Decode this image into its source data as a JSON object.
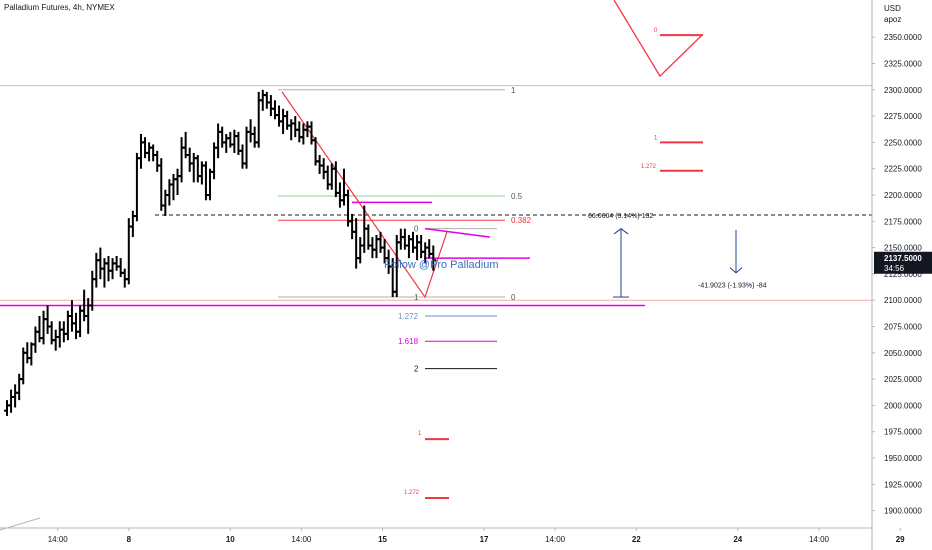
{
  "title": "Palladium Futures, 4h, NYMEX",
  "axis_header": {
    "line1": "USD",
    "line2": "apoz"
  },
  "current_price": {
    "value": "2137.5000",
    "countdown": "34:56"
  },
  "watermark": "Follow @Pro Palladium",
  "measure_up_label": "66.0604 (3.14%) 132",
  "measure_down_label": "-41.9023 (-1.93%) -84",
  "colors": {
    "bar": "#000000",
    "fib_red": "#f23645",
    "magenta": "#e100e1",
    "level_line": "#f7a8a8",
    "blue": "#2a3f8f",
    "fib_green": "#8fd18f",
    "fib_grey": "#b0b0b0",
    "fib_blue": "#6b8fd1",
    "dashed": "#131722"
  },
  "chart_data": {
    "type": "ohlc",
    "title": "Palladium Futures, 4h, NYMEX",
    "ylabel": "USD",
    "ylim": [
      1885,
      2385
    ],
    "y_ticks": [
      1900,
      1925,
      1950,
      1975,
      2000,
      2025,
      2050,
      2075,
      2100,
      2125,
      2150,
      2175,
      2200,
      2225,
      2250,
      2275,
      2300,
      2325,
      2350
    ],
    "y_tick_labels": [
      "1900.0000",
      "1925.0000",
      "1950.0000",
      "1975.0000",
      "2000.0000",
      "2025.0000",
      "2050.0000",
      "2075.0000",
      "2100.0000",
      "2125.0000",
      "2150.0000",
      "2175.0000",
      "2200.0000",
      "2225.0000",
      "2250.0000",
      "2275.0000",
      "2300.0000",
      "2325.0000",
      "2350.0000"
    ],
    "x_ticks": [
      {
        "label": "14:00",
        "pos": 2.5
      },
      {
        "label": "8",
        "pos": 6.0
      },
      {
        "label": "10",
        "pos": 11.0
      },
      {
        "label": "14:00",
        "pos": 14.5
      },
      {
        "label": "15",
        "pos": 18.5
      },
      {
        "label": "17",
        "pos": 23.5
      },
      {
        "label": "14:00",
        "pos": 27.0
      },
      {
        "label": "22",
        "pos": 31.0
      },
      {
        "label": "24",
        "pos": 36.0
      },
      {
        "label": "14:00",
        "pos": 40.0
      },
      {
        "label": "29",
        "pos": 44.0
      }
    ],
    "x_range": [
      0,
      47
    ],
    "ohlc": [
      [
        0.0,
        1995,
        2005,
        1990,
        2000
      ],
      [
        0.2,
        2000,
        2015,
        1993,
        2008
      ],
      [
        0.4,
        2008,
        2020,
        1998,
        2012
      ],
      [
        0.6,
        2012,
        2030,
        2005,
        2025
      ],
      [
        0.8,
        2025,
        2055,
        2020,
        2050
      ],
      [
        1.0,
        2050,
        2060,
        2040,
        2045
      ],
      [
        1.2,
        2045,
        2060,
        2038,
        2058
      ],
      [
        1.4,
        2058,
        2075,
        2050,
        2070
      ],
      [
        1.6,
        2070,
        2085,
        2060,
        2064
      ],
      [
        1.8,
        2064,
        2090,
        2058,
        2082
      ],
      [
        2.0,
        2082,
        2095,
        2068,
        2075
      ],
      [
        2.2,
        2075,
        2080,
        2058,
        2062
      ],
      [
        2.4,
        2062,
        2072,
        2052,
        2065
      ],
      [
        2.6,
        2065,
        2080,
        2055,
        2072
      ],
      [
        2.8,
        2072,
        2080,
        2060,
        2068
      ],
      [
        3.0,
        2068,
        2090,
        2062,
        2085
      ],
      [
        3.2,
        2085,
        2100,
        2070,
        2078
      ],
      [
        3.4,
        2078,
        2088,
        2063,
        2070
      ],
      [
        3.6,
        2070,
        2095,
        2065,
        2090
      ],
      [
        3.8,
        2090,
        2110,
        2080,
        2085
      ],
      [
        4.0,
        2085,
        2102,
        2068,
        2095
      ],
      [
        4.2,
        2095,
        2128,
        2090,
        2120
      ],
      [
        4.4,
        2120,
        2145,
        2112,
        2138
      ],
      [
        4.6,
        2138,
        2150,
        2120,
        2130
      ],
      [
        4.8,
        2130,
        2140,
        2112,
        2135
      ],
      [
        5.0,
        2135,
        2142,
        2118,
        2128
      ],
      [
        5.2,
        2128,
        2140,
        2120,
        2135
      ],
      [
        5.4,
        2135,
        2142,
        2128,
        2132
      ],
      [
        5.6,
        2132,
        2140,
        2122,
        2126
      ],
      [
        5.8,
        2126,
        2130,
        2112,
        2120
      ],
      [
        6.0,
        2120,
        2178,
        2115,
        2170
      ],
      [
        6.2,
        2170,
        2185,
        2160,
        2180
      ],
      [
        6.4,
        2180,
        2240,
        2175,
        2235
      ],
      [
        6.6,
        2235,
        2258,
        2225,
        2250
      ],
      [
        6.8,
        2250,
        2255,
        2235,
        2240
      ],
      [
        7.0,
        2240,
        2250,
        2232,
        2245
      ],
      [
        7.2,
        2245,
        2248,
        2232,
        2238
      ],
      [
        7.4,
        2238,
        2242,
        2222,
        2228
      ],
      [
        7.6,
        2228,
        2235,
        2185,
        2190
      ],
      [
        7.8,
        2190,
        2205,
        2180,
        2200
      ],
      [
        8.0,
        2200,
        2215,
        2190,
        2210
      ],
      [
        8.2,
        2210,
        2220,
        2195,
        2215
      ],
      [
        8.4,
        2215,
        2225,
        2200,
        2218
      ],
      [
        8.6,
        2218,
        2255,
        2212,
        2245
      ],
      [
        8.8,
        2245,
        2260,
        2235,
        2238
      ],
      [
        9.0,
        2238,
        2245,
        2222,
        2230
      ],
      [
        9.2,
        2230,
        2240,
        2212,
        2235
      ],
      [
        9.4,
        2235,
        2238,
        2212,
        2218
      ],
      [
        9.6,
        2218,
        2232,
        2210,
        2228
      ],
      [
        9.8,
        2228,
        2232,
        2195,
        2200
      ],
      [
        10.0,
        2200,
        2225,
        2195,
        2222
      ],
      [
        10.2,
        2222,
        2250,
        2215,
        2245
      ],
      [
        10.4,
        2245,
        2268,
        2235,
        2260
      ],
      [
        10.6,
        2260,
        2265,
        2245,
        2250
      ],
      [
        10.8,
        2250,
        2258,
        2240,
        2254
      ],
      [
        11.0,
        2254,
        2260,
        2245,
        2248
      ],
      [
        11.2,
        2248,
        2262,
        2240,
        2256
      ],
      [
        11.4,
        2256,
        2260,
        2238,
        2242
      ],
      [
        11.6,
        2242,
        2248,
        2225,
        2230
      ],
      [
        11.8,
        2230,
        2265,
        2225,
        2260
      ],
      [
        12.0,
        2260,
        2272,
        2250,
        2258
      ],
      [
        12.2,
        2258,
        2265,
        2245,
        2250
      ],
      [
        12.4,
        2250,
        2298,
        2245,
        2290
      ],
      [
        12.6,
        2290,
        2300,
        2280,
        2295
      ],
      [
        12.8,
        2295,
        2298,
        2282,
        2288
      ],
      [
        13.0,
        2288,
        2295,
        2275,
        2282
      ],
      [
        13.2,
        2282,
        2290,
        2272,
        2276
      ],
      [
        13.4,
        2276,
        2285,
        2265,
        2270
      ],
      [
        13.6,
        2270,
        2282,
        2258,
        2275
      ],
      [
        13.8,
        2275,
        2280,
        2262,
        2266
      ],
      [
        14.0,
        2266,
        2272,
        2252,
        2268
      ],
      [
        14.2,
        2268,
        2275,
        2255,
        2262
      ],
      [
        14.4,
        2262,
        2270,
        2250,
        2255
      ],
      [
        14.6,
        2255,
        2268,
        2248,
        2262
      ],
      [
        14.8,
        2262,
        2270,
        2255,
        2265
      ],
      [
        15.0,
        2265,
        2270,
        2248,
        2252
      ],
      [
        15.2,
        2252,
        2255,
        2228,
        2232
      ],
      [
        15.4,
        2232,
        2238,
        2220,
        2228
      ],
      [
        15.6,
        2228,
        2235,
        2215,
        2222
      ],
      [
        15.8,
        2222,
        2228,
        2205,
        2210
      ],
      [
        16.0,
        2210,
        2230,
        2205,
        2225
      ],
      [
        16.2,
        2225,
        2232,
        2198,
        2202
      ],
      [
        16.4,
        2202,
        2212,
        2188,
        2195
      ],
      [
        16.6,
        2195,
        2225,
        2190,
        2200
      ],
      [
        16.8,
        2200,
        2205,
        2170,
        2175
      ],
      [
        17.0,
        2175,
        2182,
        2158,
        2165
      ],
      [
        17.2,
        2165,
        2178,
        2130,
        2140
      ],
      [
        17.4,
        2140,
        2160,
        2135,
        2152
      ],
      [
        17.6,
        2152,
        2190,
        2145,
        2168
      ],
      [
        17.8,
        2168,
        2172,
        2148,
        2152
      ],
      [
        18.0,
        2152,
        2160,
        2140,
        2148
      ],
      [
        18.2,
        2148,
        2162,
        2140,
        2158
      ],
      [
        18.4,
        2158,
        2165,
        2145,
        2150
      ],
      [
        18.6,
        2150,
        2158,
        2135,
        2140
      ],
      [
        18.8,
        2140,
        2148,
        2125,
        2132
      ],
      [
        19.0,
        2132,
        2140,
        2103,
        2108
      ],
      [
        19.2,
        2108,
        2162,
        2103,
        2155
      ],
      [
        19.4,
        2155,
        2168,
        2148,
        2160
      ],
      [
        19.6,
        2160,
        2168,
        2148,
        2152
      ],
      [
        19.8,
        2152,
        2162,
        2140,
        2158
      ],
      [
        20.0,
        2158,
        2165,
        2145,
        2150
      ],
      [
        20.2,
        2150,
        2162,
        2138,
        2155
      ],
      [
        20.4,
        2155,
        2162,
        2140,
        2146
      ],
      [
        20.6,
        2146,
        2155,
        2135,
        2150
      ],
      [
        20.8,
        2150,
        2158,
        2140,
        2144
      ],
      [
        21.0,
        2144,
        2152,
        2128,
        2138
      ]
    ],
    "levels": [
      {
        "price": 2304,
        "color": "level_line"
      },
      {
        "price": 2100,
        "color": "level_line"
      }
    ],
    "support_line": {
      "price": 2095
    },
    "dashed_level": {
      "price": 2181
    },
    "fib_retracement": {
      "levels": [
        {
          "label": "1",
          "price": 2300,
          "color": "fib_grey"
        },
        {
          "label": "0.5",
          "price": 2199,
          "color": "fib_green"
        },
        {
          "label": "0.382",
          "price": 2176,
          "color": "fib_red"
        },
        {
          "label": "0",
          "price": 2103,
          "color": "fib_grey"
        }
      ]
    },
    "fib_extension": {
      "levels": [
        {
          "label": "0",
          "price": 2168,
          "color": "fib_grey"
        },
        {
          "label": "1",
          "price": 2103,
          "color": "fib_grey"
        },
        {
          "label": "1.272",
          "price": 2085,
          "color": "fib_blue"
        },
        {
          "label": "1.618",
          "price": 2061,
          "color": "magenta"
        },
        {
          "label": "2",
          "price": 2035,
          "color": "dashed"
        }
      ]
    },
    "right_targets": [
      {
        "label": "0",
        "price": 2352
      },
      {
        "label": "1",
        "price": 2250
      },
      {
        "label": "1.272",
        "price": 2223
      }
    ],
    "low_targets": [
      {
        "label": "1",
        "price": 1968
      },
      {
        "label": "1.272",
        "price": 1912
      }
    ]
  }
}
